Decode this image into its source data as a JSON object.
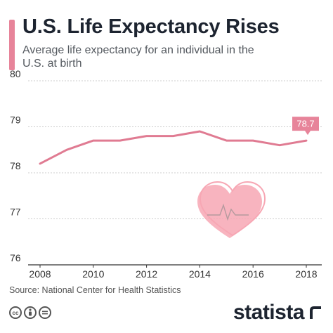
{
  "header": {
    "title": "U.S. Life Expectancy Rises",
    "subtitle": "Average life expectancy for an individual in the U.S. at birth"
  },
  "footer": {
    "source": "Source: National Center for Health Statistics",
    "brand": "statista",
    "license_icons": [
      "creative-commons-icon",
      "attribution-icon",
      "no-derivatives-icon"
    ]
  },
  "colors": {
    "accent": "#e7849a",
    "line": "#e07b92",
    "heart": "#f7a7b4",
    "grid": "#cccccc",
    "text": "#1d2430"
  },
  "chart_data": {
    "type": "line",
    "title": "U.S. Life Expectancy Rises",
    "subtitle": "Average life expectancy for an individual in the U.S. at birth",
    "x": [
      2008,
      2009,
      2010,
      2011,
      2012,
      2013,
      2014,
      2015,
      2016,
      2017,
      2018
    ],
    "series": [
      {
        "values": [
          78.2,
          78.5,
          78.7,
          78.7,
          78.8,
          78.8,
          78.9,
          78.7,
          78.7,
          78.6,
          78.7
        ]
      }
    ],
    "xticks": [
      "2008",
      "2010",
      "2012",
      "2014",
      "2016",
      "2018"
    ],
    "yticks": [
      "76",
      "77",
      "78",
      "79",
      "80"
    ],
    "ylim": [
      76,
      80
    ],
    "xlim": [
      2008,
      2018
    ],
    "grid": true,
    "annotation": {
      "x": 2018,
      "label": "78.7"
    }
  }
}
